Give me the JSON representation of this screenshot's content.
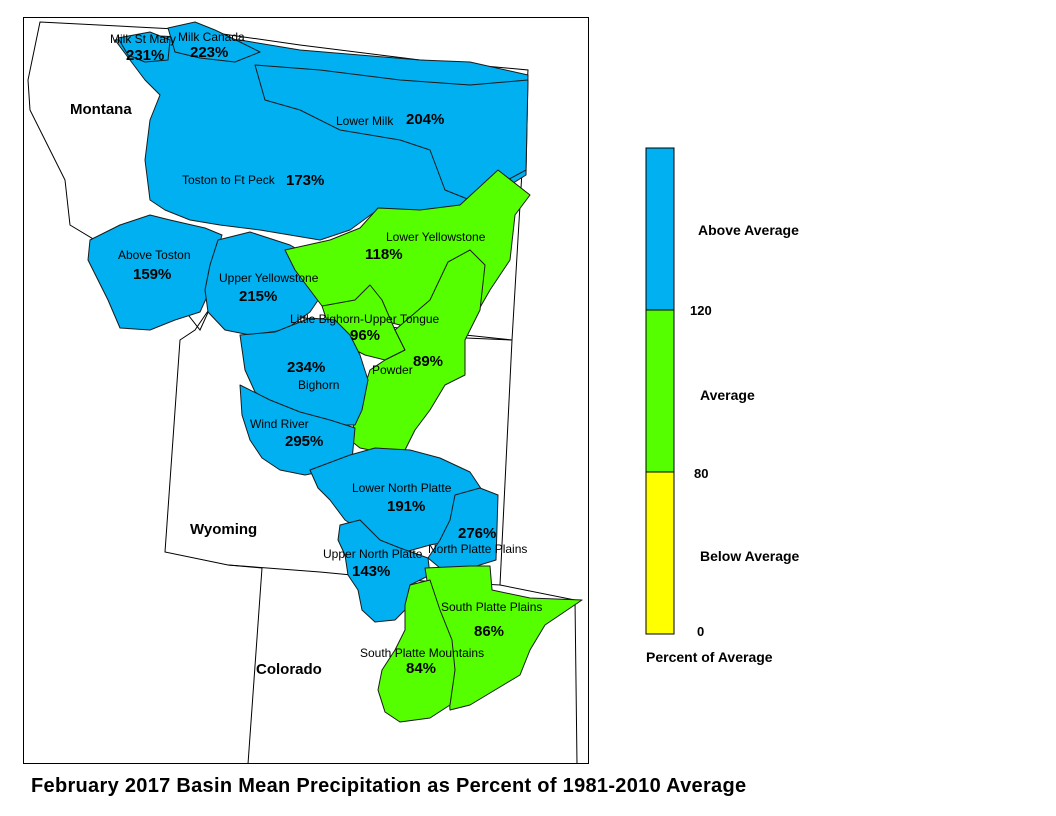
{
  "caption": "February 2017 Basin Mean Precipitation as Percent of 1981-2010 Average",
  "colors": {
    "above": "#00b0f0",
    "average": "#55ff00",
    "below": "#ffff00",
    "outline": "#000000"
  },
  "states": [
    {
      "key": "montana",
      "name": "Montana"
    },
    {
      "key": "wyoming",
      "name": "Wyoming"
    },
    {
      "key": "colorado",
      "name": "Colorado"
    }
  ],
  "basins": [
    {
      "key": "milk-st-mary",
      "name": "Milk St Mary",
      "percent": "231%",
      "category": "above"
    },
    {
      "key": "milk-canada",
      "name": "Milk Canada",
      "percent": "223%",
      "category": "above"
    },
    {
      "key": "lower-milk",
      "name": "Lower Milk",
      "percent": "204%",
      "category": "above"
    },
    {
      "key": "toston-to-ft-peck",
      "name": "Toston to Ft Peck",
      "percent": "173%",
      "category": "above"
    },
    {
      "key": "above-toston",
      "name": "Above Toston",
      "percent": "159%",
      "category": "above"
    },
    {
      "key": "upper-yellowstone",
      "name": "Upper Yellowstone",
      "percent": "215%",
      "category": "above"
    },
    {
      "key": "lower-yellowstone",
      "name": "Lower Yellowstone",
      "percent": "118%",
      "category": "average"
    },
    {
      "key": "little-bighorn-upper-tongue",
      "name": "Little Bighorn-Upper Tongue",
      "percent": "96%",
      "category": "average"
    },
    {
      "key": "powder",
      "name": "Powder",
      "percent": "89%",
      "category": "average"
    },
    {
      "key": "bighorn",
      "name": "Bighorn",
      "percent": "234%",
      "category": "above"
    },
    {
      "key": "wind-river",
      "name": "Wind River",
      "percent": "295%",
      "category": "above"
    },
    {
      "key": "lower-north-platte",
      "name": "Lower North Platte",
      "percent": "191%",
      "category": "above"
    },
    {
      "key": "north-platte-plains",
      "name": "North Platte Plains",
      "percent": "276%",
      "category": "above"
    },
    {
      "key": "upper-north-platte",
      "name": "Upper North Platte",
      "percent": "143%",
      "category": "above"
    },
    {
      "key": "south-platte-plains",
      "name": "South Platte Plains",
      "percent": "86%",
      "category": "average"
    },
    {
      "key": "south-platte-mountains",
      "name": "South Platte Mountains",
      "percent": "84%",
      "category": "average"
    }
  ],
  "legend": {
    "title": "Percent of Average",
    "classes": [
      {
        "label": "Above Average",
        "category": "above"
      },
      {
        "label": "Average",
        "category": "average"
      },
      {
        "label": "Below Average",
        "category": "below"
      }
    ],
    "ticks": [
      "120",
      "80",
      "0"
    ]
  }
}
